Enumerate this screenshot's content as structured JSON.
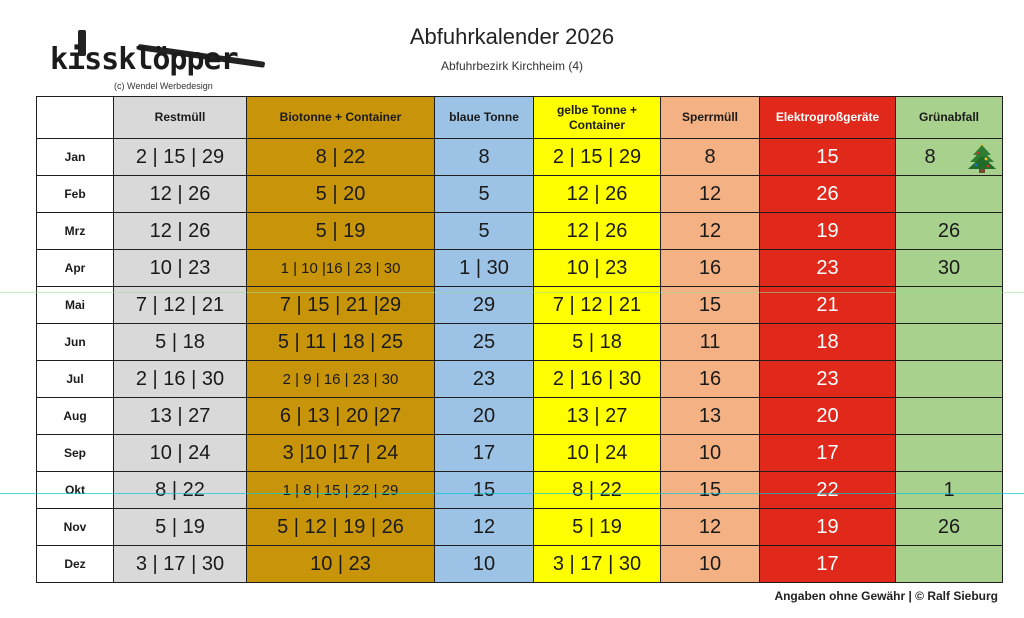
{
  "logo": {
    "wordmark": "kissklöpper",
    "byline": "(c) Wendel Werbedesign"
  },
  "header": {
    "title": "Abfuhrkalender 2026",
    "subtitle": "Abfuhrbezirk Kirchheim (4)"
  },
  "colors": {
    "restmuell": "#d9d9d9",
    "biotonne": "#c8950a",
    "blaue_tonne": "#9cc2e5",
    "gelbe_tonne": "#ffff00",
    "sperrmuell": "#f4b183",
    "elektro": "#e0281b",
    "gruenabfall": "#a9d18e"
  },
  "table": {
    "columns": [
      "Restmüll",
      "Biotonne + Container",
      "blaue Tonne",
      "gelbe Tonne + Container",
      "Sperrmüll",
      "Elektrogroßgeräte",
      "Grünabfall"
    ],
    "rows": [
      {
        "month": "Jan",
        "cells": [
          "2 | 15 | 29",
          "8 | 22",
          "8",
          "2 | 15 | 29",
          "8",
          "15",
          "8"
        ]
      },
      {
        "month": "Feb",
        "cells": [
          "12 | 26",
          "5 | 20",
          "5",
          "12 | 26",
          "12",
          "26",
          ""
        ]
      },
      {
        "month": "Mrz",
        "cells": [
          "12 | 26",
          "5 | 19",
          "5",
          "12 | 26",
          "12",
          "19",
          "26"
        ]
      },
      {
        "month": "Apr",
        "cells": [
          "10 | 23",
          "1 | 10 |16 | 23 | 30",
          "1 | 30",
          "10 | 23",
          "16",
          "23",
          "30"
        ]
      },
      {
        "month": "Mai",
        "cells": [
          "7 | 12 | 21",
          "7 | 15 | 21 |29",
          "29",
          "7 | 12 | 21",
          "15",
          "21",
          ""
        ]
      },
      {
        "month": "Jun",
        "cells": [
          "5 | 18",
          "5 | 11 | 18 | 25",
          "25",
          "5 | 18",
          "11",
          "18",
          ""
        ]
      },
      {
        "month": "Jul",
        "cells": [
          "2 | 16 | 30",
          "2 | 9 | 16 | 23 | 30",
          "23",
          "2 | 16 | 30",
          "16",
          "23",
          ""
        ]
      },
      {
        "month": "Aug",
        "cells": [
          "13 | 27",
          "6 | 13 | 20 |27",
          "20",
          "13 | 27",
          "13",
          "20",
          ""
        ]
      },
      {
        "month": "Sep",
        "cells": [
          "10 | 24",
          "3 |10 |17 | 24",
          "17",
          "10 | 24",
          "10",
          "17",
          ""
        ]
      },
      {
        "month": "Okt",
        "cells": [
          "8 | 22",
          "1 | 8 | 15 | 22 | 29",
          "15",
          "8 | 22",
          "15",
          "22",
          "1"
        ]
      },
      {
        "month": "Nov",
        "cells": [
          "5 | 19",
          "5 | 12 | 19 | 26",
          "12",
          "5 | 19",
          "12",
          "19",
          "26"
        ]
      },
      {
        "month": "Dez",
        "cells": [
          "3 | 17 | 30",
          "10 | 23",
          "10",
          "3 | 17 | 30",
          "10",
          "17",
          ""
        ]
      }
    ]
  },
  "icons": {
    "jan_gruenabfall": "christmas-tree-icon"
  },
  "footer": {
    "text": "Angaben ohne Gewähr | ©  Ralf Sieburg"
  }
}
